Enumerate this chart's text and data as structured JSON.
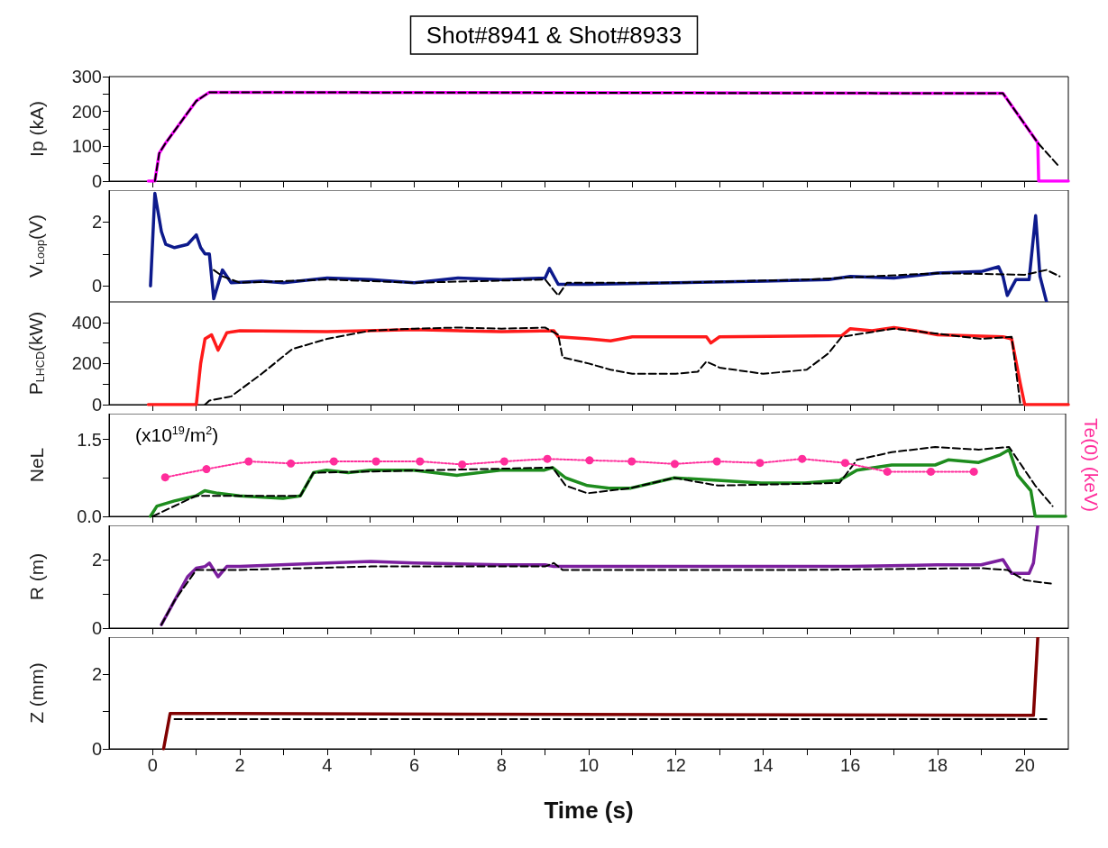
{
  "chart_data": [
    {
      "type": "line",
      "title": "Shot#8941 & Shot#8933",
      "ylabel": "Ip (kA)",
      "xlim": [
        -1,
        21
      ],
      "xticks": [
        0,
        2,
        4,
        6,
        8,
        10,
        12,
        14,
        16,
        18,
        20,
        {
          "value": 1,
          "label": null
        },
        {
          "value": 3,
          "label": null
        },
        {
          "value": 5,
          "label": null
        },
        {
          "value": 7,
          "label": null
        },
        {
          "value": 9,
          "label": null
        },
        {
          "value": 11,
          "label": null
        },
        {
          "value": 13,
          "label": null
        },
        {
          "value": 15,
          "label": null
        },
        {
          "value": 17,
          "label": null
        },
        {
          "value": 19,
          "label": null
        }
      ],
      "ylim": [
        0,
        300
      ],
      "yticks": [
        0,
        100,
        200,
        300,
        {
          "value": 50,
          "label": null
        },
        {
          "value": 150,
          "label": null
        },
        {
          "value": 250,
          "label": null
        }
      ],
      "tick_labels": "y",
      "series": [
        {
          "color": "#ff00ff",
          "line_style": "solid",
          "marker": "none",
          "x": [
            -0.1,
            0.05,
            0.15,
            0.3,
            1,
            1.3,
            19.5,
            20.3,
            20.32,
            21
          ],
          "values": [
            0,
            0,
            80,
            110,
            230,
            255,
            252,
            110,
            0,
            0
          ]
        },
        {
          "color": "#000000",
          "line_style": "dashed",
          "marker": "none",
          "x": [
            0.05,
            0.15,
            0.3,
            1,
            1.3,
            19.5,
            20.3,
            20.8
          ],
          "values": [
            0,
            80,
            110,
            230,
            255,
            252,
            110,
            40
          ]
        }
      ]
    },
    {
      "type": "line",
      "ylabel": "V$_{Loop}$(V)",
      "xlim": [
        -1,
        21
      ],
      "xticks": [
        0,
        2,
        4,
        6,
        8,
        10,
        12,
        14,
        16,
        18,
        20,
        {
          "value": 1,
          "label": null
        },
        {
          "value": 3,
          "label": null
        },
        {
          "value": 5,
          "label": null
        },
        {
          "value": 7,
          "label": null
        },
        {
          "value": 9,
          "label": null
        },
        {
          "value": 11,
          "label": null
        },
        {
          "value": 13,
          "label": null
        },
        {
          "value": 15,
          "label": null
        },
        {
          "value": 17,
          "label": null
        },
        {
          "value": 19,
          "label": null
        }
      ],
      "ylim": [
        -0.5,
        3
      ],
      "yticks": [
        0,
        2,
        {
          "value": 1,
          "label": null
        }
      ],
      "tick_labels": "y",
      "series": [
        {
          "color": "#0d1a8c",
          "line_style": "solid",
          "marker": "none",
          "x": [
            -0.05,
            0.05,
            0.2,
            0.3,
            0.5,
            0.8,
            1,
            1.1,
            1.2,
            1.3,
            1.4,
            1.6,
            1.8,
            2.5,
            3,
            4,
            5,
            6,
            7,
            8,
            9,
            9.1,
            9.3,
            10,
            12,
            14,
            15.5,
            16,
            17,
            18,
            19,
            19.4,
            19.5,
            19.6,
            19.8,
            20.1,
            20.25,
            20.35,
            20.5
          ],
          "values": [
            0,
            2.9,
            1.7,
            1.3,
            1.2,
            1.3,
            1.6,
            1.2,
            1,
            1,
            -0.4,
            0.5,
            0.1,
            0.15,
            0.1,
            0.25,
            0.2,
            0.1,
            0.25,
            0.2,
            0.25,
            0.55,
            0.05,
            0.05,
            0.1,
            0.15,
            0.2,
            0.3,
            0.25,
            0.4,
            0.45,
            0.6,
            0.3,
            -0.3,
            0.2,
            0.2,
            2.2,
            0.3,
            -0.5
          ]
        },
        {
          "color": "#000000",
          "line_style": "dashed",
          "marker": "none",
          "x": [
            1.4,
            1.6,
            2,
            4,
            6,
            9,
            9.3,
            9.5,
            12,
            15,
            18,
            20,
            20.5,
            20.8
          ],
          "values": [
            0.5,
            0.3,
            0.1,
            0.2,
            0.1,
            0.2,
            -0.3,
            0.1,
            0.1,
            0.2,
            0.4,
            0.35,
            0.5,
            0.3
          ]
        }
      ]
    },
    {
      "type": "line",
      "ylabel": "P$_{LHCD}$(kW)",
      "xlim": [
        -1,
        21
      ],
      "xticks": [
        0,
        2,
        4,
        6,
        8,
        10,
        12,
        14,
        16,
        18,
        20,
        {
          "value": 1,
          "label": null
        },
        {
          "value": 3,
          "label": null
        },
        {
          "value": 5,
          "label": null
        },
        {
          "value": 7,
          "label": null
        },
        {
          "value": 9,
          "label": null
        },
        {
          "value": 11,
          "label": null
        },
        {
          "value": 13,
          "label": null
        },
        {
          "value": 15,
          "label": null
        },
        {
          "value": 17,
          "label": null
        },
        {
          "value": 19,
          "label": null
        }
      ],
      "ylim": [
        0,
        500
      ],
      "yticks": [
        0,
        200,
        400,
        {
          "value": 100,
          "label": null
        },
        {
          "value": 300,
          "label": null
        }
      ],
      "tick_labels": "y",
      "series": [
        {
          "color": "#ff1a1a",
          "line_style": "solid",
          "marker": "none",
          "x": [
            -0.1,
            1,
            1.1,
            1.2,
            1.35,
            1.5,
            1.7,
            2,
            4,
            6,
            8,
            9.2,
            9.3,
            10,
            10.5,
            11,
            12.7,
            12.8,
            13,
            15.8,
            16,
            16.5,
            17,
            17.5,
            18,
            19.5,
            19.7,
            19.9,
            20,
            21
          ],
          "values": [
            0,
            0,
            200,
            320,
            340,
            265,
            350,
            360,
            355,
            365,
            355,
            360,
            330,
            320,
            310,
            330,
            330,
            300,
            330,
            335,
            370,
            360,
            375,
            360,
            340,
            330,
            320,
            100,
            0,
            0
          ]
        },
        {
          "color": "#000000",
          "line_style": "dashed",
          "marker": "none",
          "x": [
            1.2,
            1.3,
            1.8,
            2.5,
            3.2,
            4,
            5,
            6,
            7,
            8,
            9,
            9.3,
            9.4,
            10,
            10.5,
            11,
            12,
            12.5,
            12.7,
            13,
            14,
            15,
            15.5,
            15.8,
            17,
            19,
            19.7,
            19.9
          ],
          "values": [
            0,
            20,
            40,
            150,
            270,
            320,
            360,
            370,
            375,
            370,
            375,
            340,
            230,
            200,
            170,
            150,
            150,
            160,
            210,
            180,
            150,
            170,
            250,
            330,
            370,
            320,
            330,
            0
          ]
        }
      ]
    },
    {
      "type": "line",
      "ylabel": "NeL",
      "y2label": "Te(0) (keV)",
      "annotations": [
        "(x10$^{19}$/m$^{2}$)"
      ],
      "xlim": [
        -1,
        21
      ],
      "xticks": [
        0,
        2,
        4,
        6,
        8,
        10,
        12,
        14,
        16,
        18,
        20,
        {
          "value": 1,
          "label": null
        },
        {
          "value": 3,
          "label": null
        },
        {
          "value": 5,
          "label": null
        },
        {
          "value": 7,
          "label": null
        },
        {
          "value": 9,
          "label": null
        },
        {
          "value": 11,
          "label": null
        },
        {
          "value": 13,
          "label": null
        },
        {
          "value": 15,
          "label": null
        },
        {
          "value": 17,
          "label": null
        },
        {
          "value": 19,
          "label": null
        }
      ],
      "ylim": [
        0,
        2
      ],
      "yticks": [
        {
          "value": 0,
          "label": "0.0"
        },
        1.5,
        {
          "value": 0.75,
          "label": null
        }
      ],
      "tick_labels": "y",
      "series": [
        {
          "color": "#1e8c1e",
          "line_style": "solid",
          "marker": "none",
          "x": [
            -0.05,
            0.1,
            0.5,
            1,
            1.2,
            1.5,
            2,
            3,
            3.4,
            3.7,
            4,
            4.5,
            5,
            6,
            7,
            8,
            9,
            9.2,
            9.5,
            10,
            10.5,
            11,
            11.5,
            12,
            13,
            14,
            15,
            15.8,
            16.2,
            17,
            18,
            18.3,
            19,
            19.5,
            19.7,
            19.9,
            20.2,
            20.3,
            21
          ],
          "values": [
            0,
            0.2,
            0.3,
            0.4,
            0.5,
            0.45,
            0.4,
            0.35,
            0.4,
            0.85,
            0.9,
            0.85,
            0.9,
            0.9,
            0.8,
            0.9,
            0.9,
            0.95,
            0.75,
            0.6,
            0.55,
            0.55,
            0.65,
            0.75,
            0.7,
            0.65,
            0.65,
            0.7,
            0.9,
            1,
            1,
            1.1,
            1.05,
            1.2,
            1.3,
            0.8,
            0.5,
            0,
            0
          ]
        },
        {
          "color": "#000000",
          "line_style": "dashed",
          "marker": "none",
          "x": [
            0,
            1,
            3.4,
            3.7,
            9.2,
            9.5,
            10,
            11,
            12,
            13,
            15.8,
            16.2,
            17,
            18,
            19,
            19.7,
            20.3,
            20.7
          ],
          "values": [
            0,
            0.4,
            0.4,
            0.85,
            0.95,
            0.6,
            0.45,
            0.55,
            0.75,
            0.6,
            0.65,
            1.1,
            1.25,
            1.35,
            1.3,
            1.35,
            0.6,
            0.2
          ]
        },
        {
          "color": "#ff2d9b",
          "line_style": "dotted",
          "marker": "circle",
          "x": [
            0.29,
            1.24,
            2.21,
            3.18,
            4.17,
            5.14,
            6.15,
            7.12,
            8.09,
            9.08,
            10.05,
            11.02,
            12.01,
            12.98,
            13.97,
            14.94,
            15.93,
            16.9,
            17.9,
            18.89
          ],
          "values": [
            0.76,
            0.92,
            1.07,
            1.03,
            1.07,
            1.07,
            1.07,
            1.01,
            1.07,
            1.12,
            1.09,
            1.07,
            1.02,
            1.07,
            1.04,
            1.12,
            1.04,
            0.87,
            0.87,
            0.87
          ]
        }
      ]
    },
    {
      "type": "line",
      "ylabel": "R (m)",
      "xlim": [
        -1,
        21
      ],
      "xticks": [
        0,
        2,
        4,
        6,
        8,
        10,
        12,
        14,
        16,
        18,
        20,
        {
          "value": 1,
          "label": null
        },
        {
          "value": 3,
          "label": null
        },
        {
          "value": 5,
          "label": null
        },
        {
          "value": 7,
          "label": null
        },
        {
          "value": 9,
          "label": null
        },
        {
          "value": 11,
          "label": null
        },
        {
          "value": 13,
          "label": null
        },
        {
          "value": 15,
          "label": null
        },
        {
          "value": 17,
          "label": null
        },
        {
          "value": 19,
          "label": null
        }
      ],
      "ylim": [
        0,
        3
      ],
      "yticks": [
        0,
        2,
        {
          "value": 1,
          "label": null
        }
      ],
      "tick_labels": "y",
      "series": [
        {
          "color": "#7b1f9e",
          "line_style": "solid",
          "marker": "none",
          "x": [
            0.2,
            0.5,
            0.8,
            1,
            1.2,
            1.3,
            1.5,
            1.7,
            2,
            4,
            5,
            6,
            8,
            9,
            9.2,
            12,
            16,
            18,
            19,
            19.5,
            19.7,
            20.1,
            20.2,
            20.3
          ],
          "values": [
            0.1,
            0.8,
            1.5,
            1.75,
            1.8,
            1.9,
            1.5,
            1.8,
            1.8,
            1.9,
            1.95,
            1.9,
            1.85,
            1.85,
            1.8,
            1.8,
            1.8,
            1.85,
            1.85,
            2,
            1.6,
            1.6,
            1.9,
            3
          ]
        },
        {
          "color": "#000000",
          "line_style": "dashed",
          "marker": "none",
          "x": [
            0.2,
            0.5,
            1,
            2,
            5,
            9,
            9.2,
            9.4,
            15,
            19,
            19.6,
            20,
            20.6
          ],
          "values": [
            0.1,
            0.8,
            1.7,
            1.7,
            1.8,
            1.8,
            1.9,
            1.7,
            1.7,
            1.75,
            1.7,
            1.4,
            1.3
          ]
        }
      ]
    },
    {
      "type": "line",
      "ylabel": "Z (mm)",
      "xlabel": "Time (s)",
      "xlim": [
        -1,
        21
      ],
      "xticks": [
        0,
        2,
        4,
        6,
        8,
        10,
        12,
        14,
        16,
        18,
        20,
        {
          "value": 1,
          "label": null
        },
        {
          "value": 3,
          "label": null
        },
        {
          "value": 5,
          "label": null
        },
        {
          "value": 7,
          "label": null
        },
        {
          "value": 9,
          "label": null
        },
        {
          "value": 11,
          "label": null
        },
        {
          "value": 13,
          "label": null
        },
        {
          "value": 15,
          "label": null
        },
        {
          "value": 17,
          "label": null
        },
        {
          "value": 19,
          "label": null
        }
      ],
      "ylim": [
        0,
        3
      ],
      "yticks": [
        0,
        2,
        {
          "value": 1,
          "label": null
        }
      ],
      "series": [
        {
          "color": "#800000",
          "line_style": "solid",
          "marker": "none",
          "x": [
            0.25,
            0.4,
            1,
            20,
            20.2,
            20.3
          ],
          "values": [
            0,
            0.95,
            0.95,
            0.9,
            0.9,
            3
          ]
        },
        {
          "color": "#000000",
          "line_style": "dashed",
          "marker": "none",
          "x": [
            0.5,
            20.5
          ],
          "values": [
            0.8,
            0.8
          ]
        }
      ]
    }
  ]
}
